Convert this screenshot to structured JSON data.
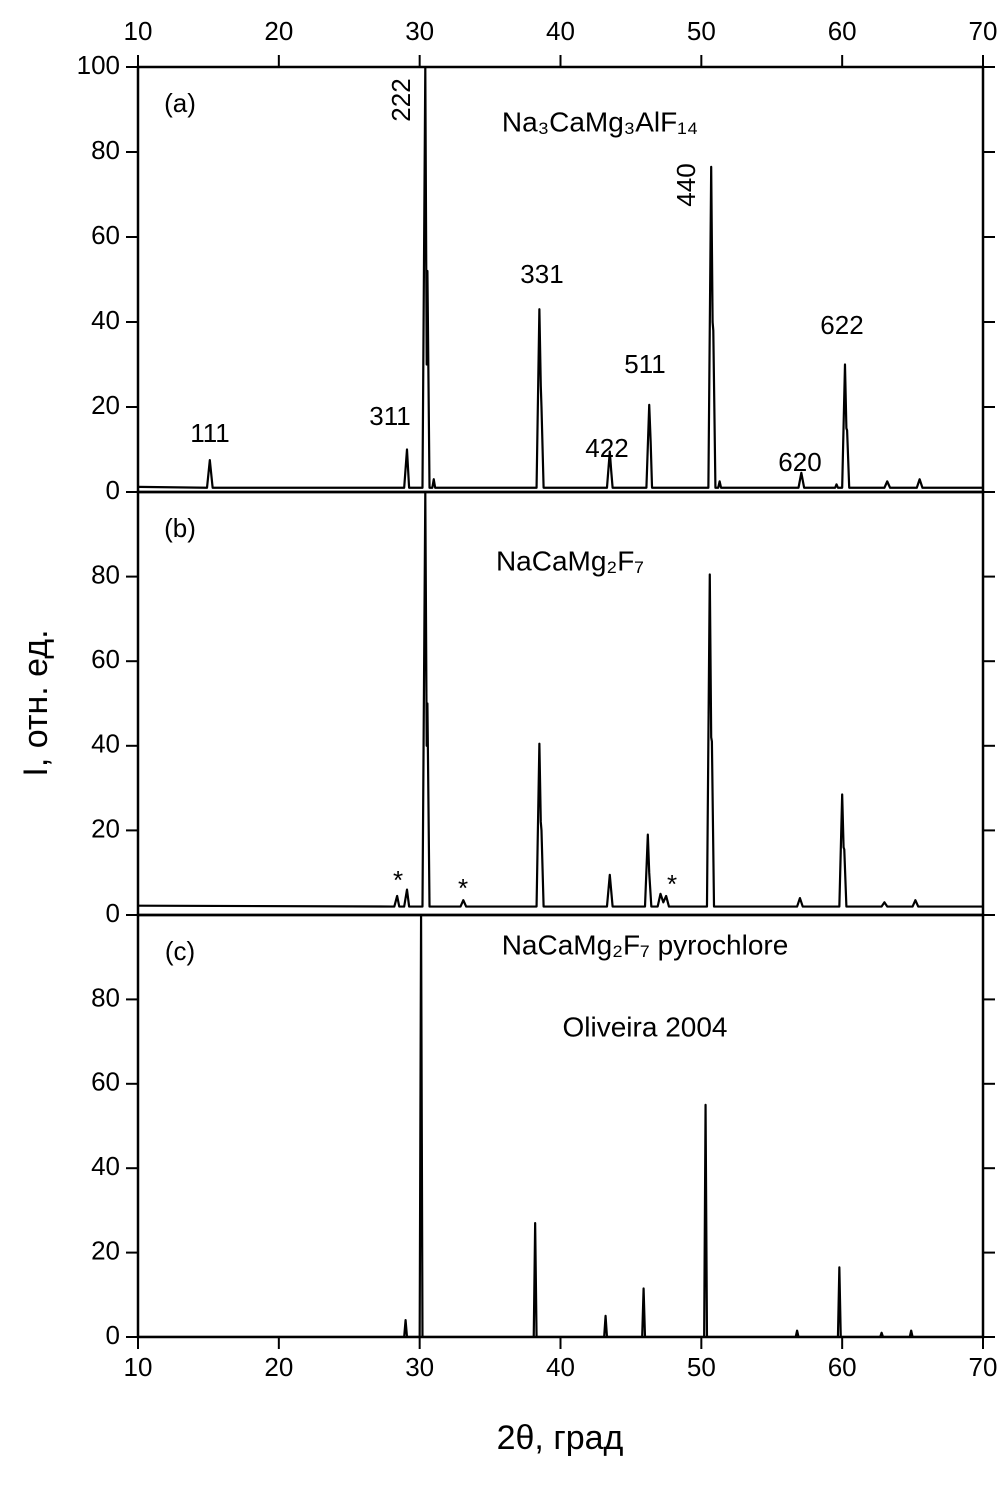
{
  "chart_data": [
    {
      "type": "line",
      "panel_label": "(a)",
      "formula": "Na₃CaMg₃AlF₁₄",
      "color": "#000000",
      "annotations": [
        "111",
        "311",
        "222",
        "331",
        "422",
        "511",
        "440",
        "620",
        "622"
      ],
      "x": [
        10,
        14.9,
        15.1,
        15.3,
        28.9,
        29.1,
        29.25,
        30.2,
        30.4,
        30.5,
        30.55,
        30.7,
        30.9,
        31,
        31.1,
        38.3,
        38.5,
        38.6,
        38.65,
        38.8,
        43.3,
        43.5,
        43.6,
        43.7,
        46.1,
        46.3,
        46.4,
        46.5,
        50.5,
        50.7,
        50.8,
        50.85,
        51,
        51.2,
        51.3,
        51.4,
        56.9,
        57.1,
        57.3,
        59.5,
        59.6,
        59.7,
        60,
        60.2,
        60.3,
        60.35,
        60.5,
        63,
        63.2,
        63.4,
        65.3,
        65.5,
        65.7,
        70
      ],
      "values": [
        1.2,
        1,
        7.5,
        1,
        1,
        10,
        1,
        1,
        100,
        30,
        52,
        1,
        1,
        3,
        1,
        1,
        43,
        25,
        20,
        1,
        1,
        9.5,
        5,
        1,
        1,
        20.5,
        12,
        1,
        1,
        76.5,
        40,
        38,
        1,
        1,
        2.5,
        1,
        1,
        4.5,
        1,
        1,
        1.8,
        1,
        1,
        30,
        15,
        14.5,
        1,
        1,
        2.5,
        1,
        1,
        3,
        1,
        1
      ],
      "xlim": [
        10,
        70
      ],
      "xticks": [
        10,
        20,
        30,
        40,
        50,
        60,
        70
      ],
      "ylim": [
        0,
        100
      ],
      "yticks": [
        0,
        20,
        40,
        60,
        80,
        100
      ]
    },
    {
      "type": "line",
      "panel_label": "(b)",
      "formula": "NaCaMg₂F₇",
      "color": "#000000",
      "y_label": "I, отн. ед.",
      "annotations": [
        "*",
        "*",
        "*"
      ],
      "x": [
        10,
        28.2,
        28.4,
        28.55,
        28.9,
        29.1,
        29.25,
        30.2,
        30.4,
        30.5,
        30.55,
        30.7,
        32.9,
        33.1,
        33.3,
        38.3,
        38.5,
        38.6,
        38.65,
        38.8,
        43.3,
        43.5,
        43.7,
        46,
        46.2,
        46.3,
        46.45,
        46.9,
        47.1,
        47.3,
        47.5,
        47.7,
        50.4,
        50.6,
        50.7,
        50.75,
        50.9,
        56.8,
        57,
        57.2,
        59.8,
        60,
        60.1,
        60.15,
        60.3,
        62.8,
        63,
        63.2,
        65,
        65.2,
        65.4,
        70
      ],
      "values": [
        2.2,
        2,
        4.5,
        2,
        2,
        6,
        2,
        2,
        100,
        40,
        50,
        2,
        2,
        3.5,
        2,
        2,
        40.5,
        22,
        20,
        2,
        2,
        9.5,
        2,
        2,
        19,
        10,
        2,
        2,
        5,
        3,
        4.5,
        2,
        2,
        80.5,
        42,
        41,
        2,
        2,
        4,
        2,
        2,
        28.5,
        16,
        15.5,
        2,
        2,
        3,
        2,
        2,
        3.5,
        2,
        2
      ],
      "xlim": [
        10,
        70
      ],
      "xticks": [
        10,
        20,
        30,
        40,
        50,
        60,
        70
      ],
      "ylim": [
        0,
        100
      ],
      "yticks": [
        0,
        20,
        40,
        60,
        80
      ]
    },
    {
      "type": "line",
      "panel_label": "(c)",
      "color": "#000000",
      "annotations": [
        "NaCaMg₂F₇ pyrochlore",
        "Oliveira 2004"
      ],
      "x_label": "2θ, град",
      "x": [
        10,
        28.9,
        29,
        29.1,
        30,
        30.1,
        30.2,
        38.1,
        38.2,
        38.3,
        43.1,
        43.2,
        43.3,
        45.8,
        45.9,
        46,
        50.2,
        50.3,
        50.4,
        56.7,
        56.8,
        56.9,
        59.7,
        59.8,
        59.9,
        62.7,
        62.8,
        62.9,
        64.8,
        64.9,
        65,
        70
      ],
      "values": [
        0,
        0,
        4,
        0,
        0,
        100,
        0,
        0,
        27,
        0,
        0,
        5,
        0,
        0,
        11.5,
        0,
        0,
        55,
        0,
        0,
        1.5,
        0,
        0,
        16.5,
        0,
        0,
        1,
        0,
        0,
        1.5,
        0,
        0
      ],
      "xlim": [
        10,
        70
      ],
      "xticks": [
        10,
        20,
        30,
        40,
        50,
        60,
        70
      ],
      "ylim": [
        0,
        100
      ],
      "yticks": [
        0,
        20,
        40,
        60,
        80
      ]
    }
  ]
}
